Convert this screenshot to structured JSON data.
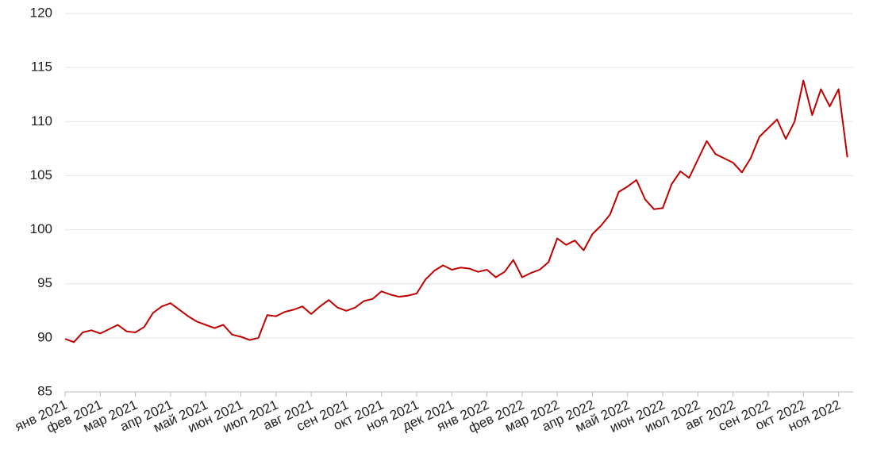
{
  "chart_data": {
    "type": "line",
    "categories": [
      "янв 2021",
      null,
      null,
      null,
      "фев 2021",
      null,
      null,
      null,
      "мар 2021",
      null,
      null,
      null,
      "апр 2021",
      null,
      null,
      null,
      "май 2021",
      null,
      null,
      null,
      "июн 2021",
      null,
      null,
      null,
      "июл 2021",
      null,
      null,
      null,
      "авг 2021",
      null,
      null,
      null,
      "сен 2021",
      null,
      null,
      null,
      "окт 2021",
      null,
      null,
      null,
      "ноя 2021",
      null,
      null,
      null,
      "дек 2021",
      null,
      null,
      null,
      "янв 2022",
      null,
      null,
      null,
      "фев 2022",
      null,
      null,
      null,
      "мар 2022",
      null,
      null,
      null,
      "апр 2022",
      null,
      null,
      null,
      "май 2022",
      null,
      null,
      null,
      "июн 2022",
      null,
      null,
      null,
      "июл 2022",
      null,
      null,
      null,
      "авг 2022",
      null,
      null,
      null,
      "сен 2022",
      null,
      null,
      null,
      "окт 2022",
      null,
      null,
      null,
      "ноя 2022",
      null
    ],
    "values": [
      89.9,
      89.6,
      90.5,
      90.7,
      90.4,
      90.8,
      91.2,
      90.6,
      90.5,
      91.0,
      92.3,
      92.9,
      93.2,
      92.6,
      92.0,
      91.5,
      91.2,
      90.9,
      91.2,
      90.3,
      90.1,
      89.8,
      90.0,
      92.1,
      92.0,
      92.4,
      92.6,
      92.9,
      92.2,
      92.9,
      93.5,
      92.8,
      92.5,
      92.8,
      93.4,
      93.6,
      94.3,
      94.0,
      93.8,
      93.9,
      94.1,
      95.4,
      96.2,
      96.7,
      96.3,
      96.5,
      96.4,
      96.1,
      96.3,
      95.6,
      96.1,
      97.2,
      95.6,
      96.0,
      96.3,
      97.0,
      99.2,
      98.6,
      99.0,
      98.1,
      99.6,
      100.4,
      101.4,
      103.5,
      104.0,
      104.6,
      102.8,
      101.9,
      102.0,
      104.2,
      105.4,
      104.8,
      106.5,
      108.2,
      107.0,
      106.6,
      106.2,
      105.3,
      106.6,
      108.6,
      109.4,
      110.2,
      108.4,
      110.0,
      113.8,
      110.6,
      113.0,
      111.4,
      113.0,
      106.7
    ],
    "color": "#c00000",
    "ylim": [
      85,
      120
    ],
    "yticks": [
      85,
      90,
      95,
      100,
      105,
      110,
      115,
      120
    ],
    "grid": true
  }
}
